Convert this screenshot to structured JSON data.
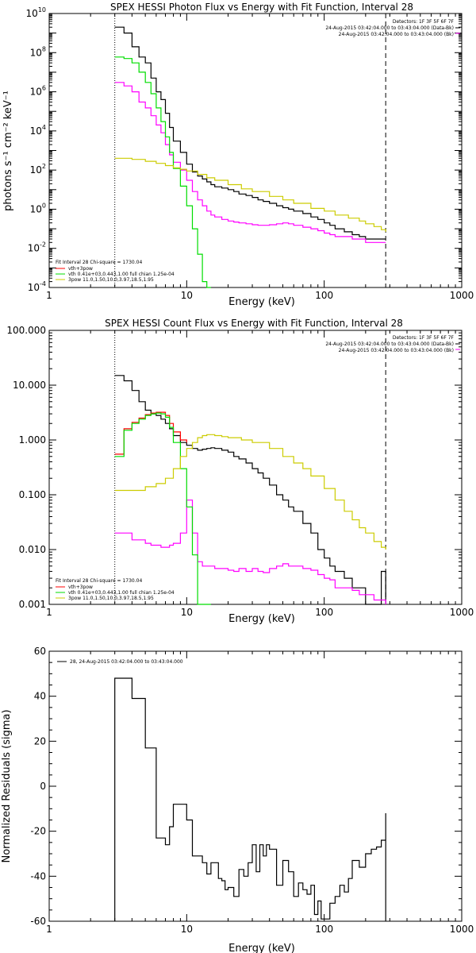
{
  "chart_data": [
    {
      "type": "line",
      "title": "SPEX HESSI Photon Flux vs Energy with Fit Function, Interval 28",
      "xlabel": "Energy (keV)",
      "ylabel": "photons s⁻¹ cm⁻² keV⁻¹",
      "xscale": "log",
      "yscale": "log",
      "xlim": [
        1,
        1000
      ],
      "ylim": [
        0.0001,
        10000000000
      ],
      "x_ticks": [
        "1",
        "10",
        "100",
        "1000"
      ],
      "y_ticks": [
        "10^-4",
        "10^-2",
        "10^0",
        "10^2",
        "10^4",
        "10^6",
        "10^8",
        "10^10"
      ],
      "fit_range_keV": [
        3,
        280
      ],
      "header_right": [
        "Detectors: 1F 3F 5F 6F 7F",
        "24-Aug-2015 03:42:04.000 to 03:43:04.000 (Data-Bk)",
        "24-Aug-2015 03:42:04.000 to 03:43:04.000 (Bk)"
      ],
      "legend_left": [
        "Fit Interval 28   Chi-square = 1730.04",
        "vth+3pow",
        "vth 0.41e+03,0.443,1.00  full chian 1.25e-04",
        "3pow 11.0,1.50,10.0,3.97,18.5,1.95"
      ],
      "colors": {
        "data": "#000000",
        "background": "#ff00ff",
        "total": "#ff0000",
        "vth": "#00dd00",
        "pow": "#cccc00"
      },
      "series": [
        {
          "id": "data",
          "x": [
            3,
            3.5,
            4,
            4.5,
            5,
            5.5,
            6,
            6.5,
            7,
            7.5,
            8,
            9,
            10,
            11,
            12,
            13,
            14,
            15,
            16,
            18,
            20,
            22,
            24,
            27,
            30,
            33,
            36,
            40,
            45,
            50,
            55,
            60,
            70,
            80,
            90,
            100,
            110,
            120,
            140,
            160,
            180,
            200,
            230,
            260,
            280
          ],
          "y": [
            2000000000.0,
            1000000000.0,
            200000000.0,
            60000000.0,
            30000000.0,
            5000000.0,
            1000000.0,
            400000.0,
            80000.0,
            15000.0,
            3000,
            800,
            200,
            80,
            50,
            35,
            25,
            18,
            14,
            12,
            10,
            8,
            6,
            5,
            4,
            3,
            2.5,
            2,
            1.5,
            1.2,
            1,
            0.8,
            0.6,
            0.4,
            0.3,
            0.2,
            0.15,
            0.1,
            0.07,
            0.05,
            0.04,
            0.03,
            0.03,
            0.03,
            0.03
          ]
        },
        {
          "id": "background",
          "x": [
            3,
            3.5,
            4,
            4.5,
            5,
            5.5,
            6,
            6.5,
            7,
            7.5,
            8,
            9,
            10,
            11,
            12,
            13,
            14,
            15,
            16,
            18,
            20,
            22,
            24,
            27,
            30,
            33,
            36,
            40,
            45,
            50,
            55,
            60,
            70,
            80,
            90,
            100,
            110,
            120,
            140,
            160,
            180,
            200,
            230,
            260,
            280
          ],
          "y": [
            3000000.0,
            2000000.0,
            1000000.0,
            300000.0,
            150000.0,
            60000.0,
            20000.0,
            8000.0,
            2000.0,
            600,
            250,
            100,
            30,
            8,
            3,
            1.5,
            0.8,
            0.5,
            0.4,
            0.3,
            0.25,
            0.22,
            0.2,
            0.18,
            0.16,
            0.15,
            0.15,
            0.16,
            0.18,
            0.2,
            0.18,
            0.15,
            0.12,
            0.1,
            0.08,
            0.06,
            0.05,
            0.04,
            0.04,
            0.03,
            0.03,
            0.02,
            0.02,
            0.02,
            0.02
          ]
        },
        {
          "id": "vth",
          "x": [
            3,
            3.5,
            4,
            4.5,
            5,
            5.5,
            6,
            6.5,
            7,
            7.5,
            8,
            9,
            10,
            11,
            12,
            13,
            14,
            15
          ],
          "y": [
            60000000.0,
            50000000.0,
            30000000.0,
            10000000.0,
            3000000.0,
            800000.0,
            150000.0,
            30000.0,
            5000,
            800,
            120,
            15,
            1.5,
            0.1,
            0.005,
            0.0002,
            0.0001,
            0.0001
          ]
        },
        {
          "id": "pow",
          "x": [
            3,
            4,
            5,
            6,
            7,
            8,
            9,
            10,
            12,
            14,
            16,
            20,
            25,
            30,
            40,
            50,
            60,
            80,
            100,
            120,
            150,
            180,
            200,
            230,
            260,
            280
          ],
          "y": [
            400,
            350,
            280,
            220,
            170,
            130,
            110,
            90,
            60,
            40,
            30,
            18,
            11,
            8,
            4.5,
            3,
            2,
            1.1,
            0.8,
            0.5,
            0.35,
            0.25,
            0.18,
            0.13,
            0.09,
            0.07
          ]
        }
      ]
    },
    {
      "type": "line",
      "title": "SPEX HESSI Count Flux vs Energy with Fit Function, Interval 28",
      "xlabel": "Energy (keV)",
      "ylabel": "",
      "xscale": "log",
      "yscale": "log",
      "xlim": [
        1,
        1000
      ],
      "ylim": [
        0.001,
        100
      ],
      "x_ticks": [
        "1",
        "10",
        "100",
        "1000"
      ],
      "y_ticks": [
        "0.001",
        "0.010",
        "0.100",
        "1.000",
        "10.000",
        "100.000"
      ],
      "fit_range_keV": [
        3,
        280
      ],
      "header_right": [
        "Detectors: 1F 3F 5F 6F 7F",
        "24-Aug-2015 03:42:04.000 to 03:43:04.000 (Data-Bk)",
        "24-Aug-2015 03:42:04.000 to 03:43:04.000 (Bk)"
      ],
      "legend_left": [
        "Fit Interval 28   Chi-square = 1730.04",
        "vth+3pow",
        "vth 0.41e+03,0.443,1.00  full chian 1.25e-04",
        "3pow 11.0,1.50,10.0,3.97,18.5,1.95"
      ],
      "colors": {
        "data": "#000000",
        "background": "#ff00ff",
        "total": "#ff0000",
        "vth": "#00dd00",
        "pow": "#cccc00"
      },
      "series": [
        {
          "id": "data",
          "x": [
            3,
            3.5,
            4,
            4.5,
            5,
            5.5,
            6,
            6.5,
            7,
            7.5,
            8,
            9,
            10,
            11,
            12,
            13,
            14,
            15,
            16,
            18,
            20,
            22,
            24,
            27,
            30,
            33,
            36,
            40,
            45,
            50,
            55,
            60,
            70,
            80,
            90,
            100,
            110,
            120,
            140,
            160,
            180,
            200,
            230,
            260,
            280
          ],
          "y": [
            15,
            12,
            8,
            5,
            3.5,
            3,
            2.8,
            2.4,
            2,
            1.6,
            1.2,
            0.9,
            0.8,
            0.7,
            0.65,
            0.68,
            0.7,
            0.72,
            0.7,
            0.65,
            0.6,
            0.5,
            0.45,
            0.38,
            0.3,
            0.25,
            0.2,
            0.15,
            0.1,
            0.08,
            0.06,
            0.05,
            0.03,
            0.02,
            0.01,
            0.007,
            0.005,
            0.004,
            0.003,
            0.002,
            0.002,
            0.001,
            0.001,
            0.004,
            0.001
          ]
        },
        {
          "id": "background",
          "x": [
            3,
            3.5,
            4,
            4.5,
            5,
            5.5,
            6,
            6.5,
            7,
            7.5,
            8,
            9,
            10,
            11,
            12,
            13,
            14,
            15,
            16,
            18,
            20,
            22,
            24,
            27,
            30,
            33,
            36,
            40,
            45,
            50,
            55,
            60,
            70,
            80,
            90,
            100,
            110,
            120,
            140,
            160,
            180,
            200,
            230,
            260,
            280
          ],
          "y": [
            0.02,
            0.02,
            0.015,
            0.015,
            0.013,
            0.012,
            0.012,
            0.011,
            0.011,
            0.012,
            0.013,
            0.02,
            0.08,
            0.02,
            0.006,
            0.005,
            0.005,
            0.005,
            0.0045,
            0.0045,
            0.0042,
            0.004,
            0.0045,
            0.004,
            0.0045,
            0.004,
            0.0038,
            0.0045,
            0.005,
            0.0055,
            0.005,
            0.005,
            0.0045,
            0.0042,
            0.0035,
            0.003,
            0.0028,
            0.002,
            0.002,
            0.0018,
            0.0015,
            0.0015,
            0.0012,
            0.0012,
            0.001
          ]
        },
        {
          "id": "total",
          "x": [
            3,
            3.5,
            4,
            4.5,
            5,
            5.5,
            6,
            6.5,
            7,
            7.5,
            8,
            9,
            10
          ],
          "y": [
            0.55,
            1.6,
            2.1,
            2.5,
            2.9,
            3.1,
            3.2,
            3.2,
            2.8,
            2.0,
            1.4,
            1.0,
            0.9
          ]
        },
        {
          "id": "vth",
          "x": [
            3,
            3.5,
            4,
            4.5,
            5,
            5.5,
            6,
            6.5,
            7,
            7.5,
            8,
            9,
            10,
            11,
            12,
            13,
            14,
            15
          ],
          "y": [
            0.5,
            1.5,
            2.0,
            2.4,
            2.8,
            3.0,
            3.1,
            3.0,
            2.6,
            1.7,
            0.9,
            0.3,
            0.06,
            0.008,
            0.001,
            0.001,
            0.001,
            0.001
          ]
        },
        {
          "id": "pow",
          "x": [
            3,
            4,
            5,
            6,
            7,
            8,
            9,
            10,
            11,
            12,
            13,
            14,
            15,
            16,
            18,
            20,
            25,
            30,
            40,
            50,
            60,
            70,
            80,
            100,
            120,
            140,
            160,
            180,
            200,
            230,
            260,
            280
          ],
          "y": [
            0.12,
            0.12,
            0.14,
            0.16,
            0.2,
            0.3,
            0.5,
            0.7,
            0.9,
            1.1,
            1.2,
            1.25,
            1.25,
            1.2,
            1.15,
            1.1,
            1.0,
            0.9,
            0.7,
            0.5,
            0.38,
            0.3,
            0.22,
            0.13,
            0.08,
            0.05,
            0.035,
            0.025,
            0.02,
            0.014,
            0.011,
            0.01
          ]
        }
      ]
    },
    {
      "type": "line",
      "title": "",
      "xlabel": "Energy (keV)",
      "ylabel": "Normalized Residuals (sigma)",
      "xscale": "log",
      "yscale": "linear",
      "xlim": [
        1,
        1000
      ],
      "ylim": [
        -60,
        60
      ],
      "x_ticks": [
        "1",
        "10",
        "100",
        "1000"
      ],
      "y_ticks": [
        "-60",
        "-40",
        "-20",
        "0",
        "20",
        "40",
        "60"
      ],
      "legend_left": [
        "28, 24-Aug-2015 03:42:04.000 to 03:43:04.000"
      ],
      "colors": {
        "data": "#000000"
      },
      "series": [
        {
          "id": "resid",
          "x": [
            3,
            4,
            5,
            6,
            6.5,
            7,
            7.5,
            8,
            9,
            10,
            11,
            12,
            13,
            14,
            15,
            16,
            17,
            18,
            19,
            20,
            22,
            24,
            26,
            28,
            30,
            32,
            34,
            36,
            38,
            40,
            45,
            50,
            55,
            60,
            65,
            70,
            75,
            80,
            85,
            90,
            95,
            100,
            110,
            120,
            130,
            140,
            150,
            160,
            180,
            200,
            220,
            240,
            260,
            280
          ],
          "y": [
            48,
            39,
            17,
            -23,
            -23,
            -26,
            -18,
            -8,
            -8,
            -15,
            -31,
            -31,
            -34,
            -39,
            -34,
            -34,
            -41,
            -42,
            -46,
            -45,
            -49,
            -37,
            -40,
            -34,
            -26,
            -38,
            -26,
            -31,
            -26,
            -28,
            -44,
            -33,
            -38,
            -49,
            -43,
            -46,
            -48,
            -44,
            -57,
            -51,
            -59,
            -59,
            -52,
            -49,
            -44,
            -47,
            -41,
            -33,
            -36,
            -30,
            -28,
            -27,
            -24,
            -12
          ]
        }
      ]
    }
  ]
}
